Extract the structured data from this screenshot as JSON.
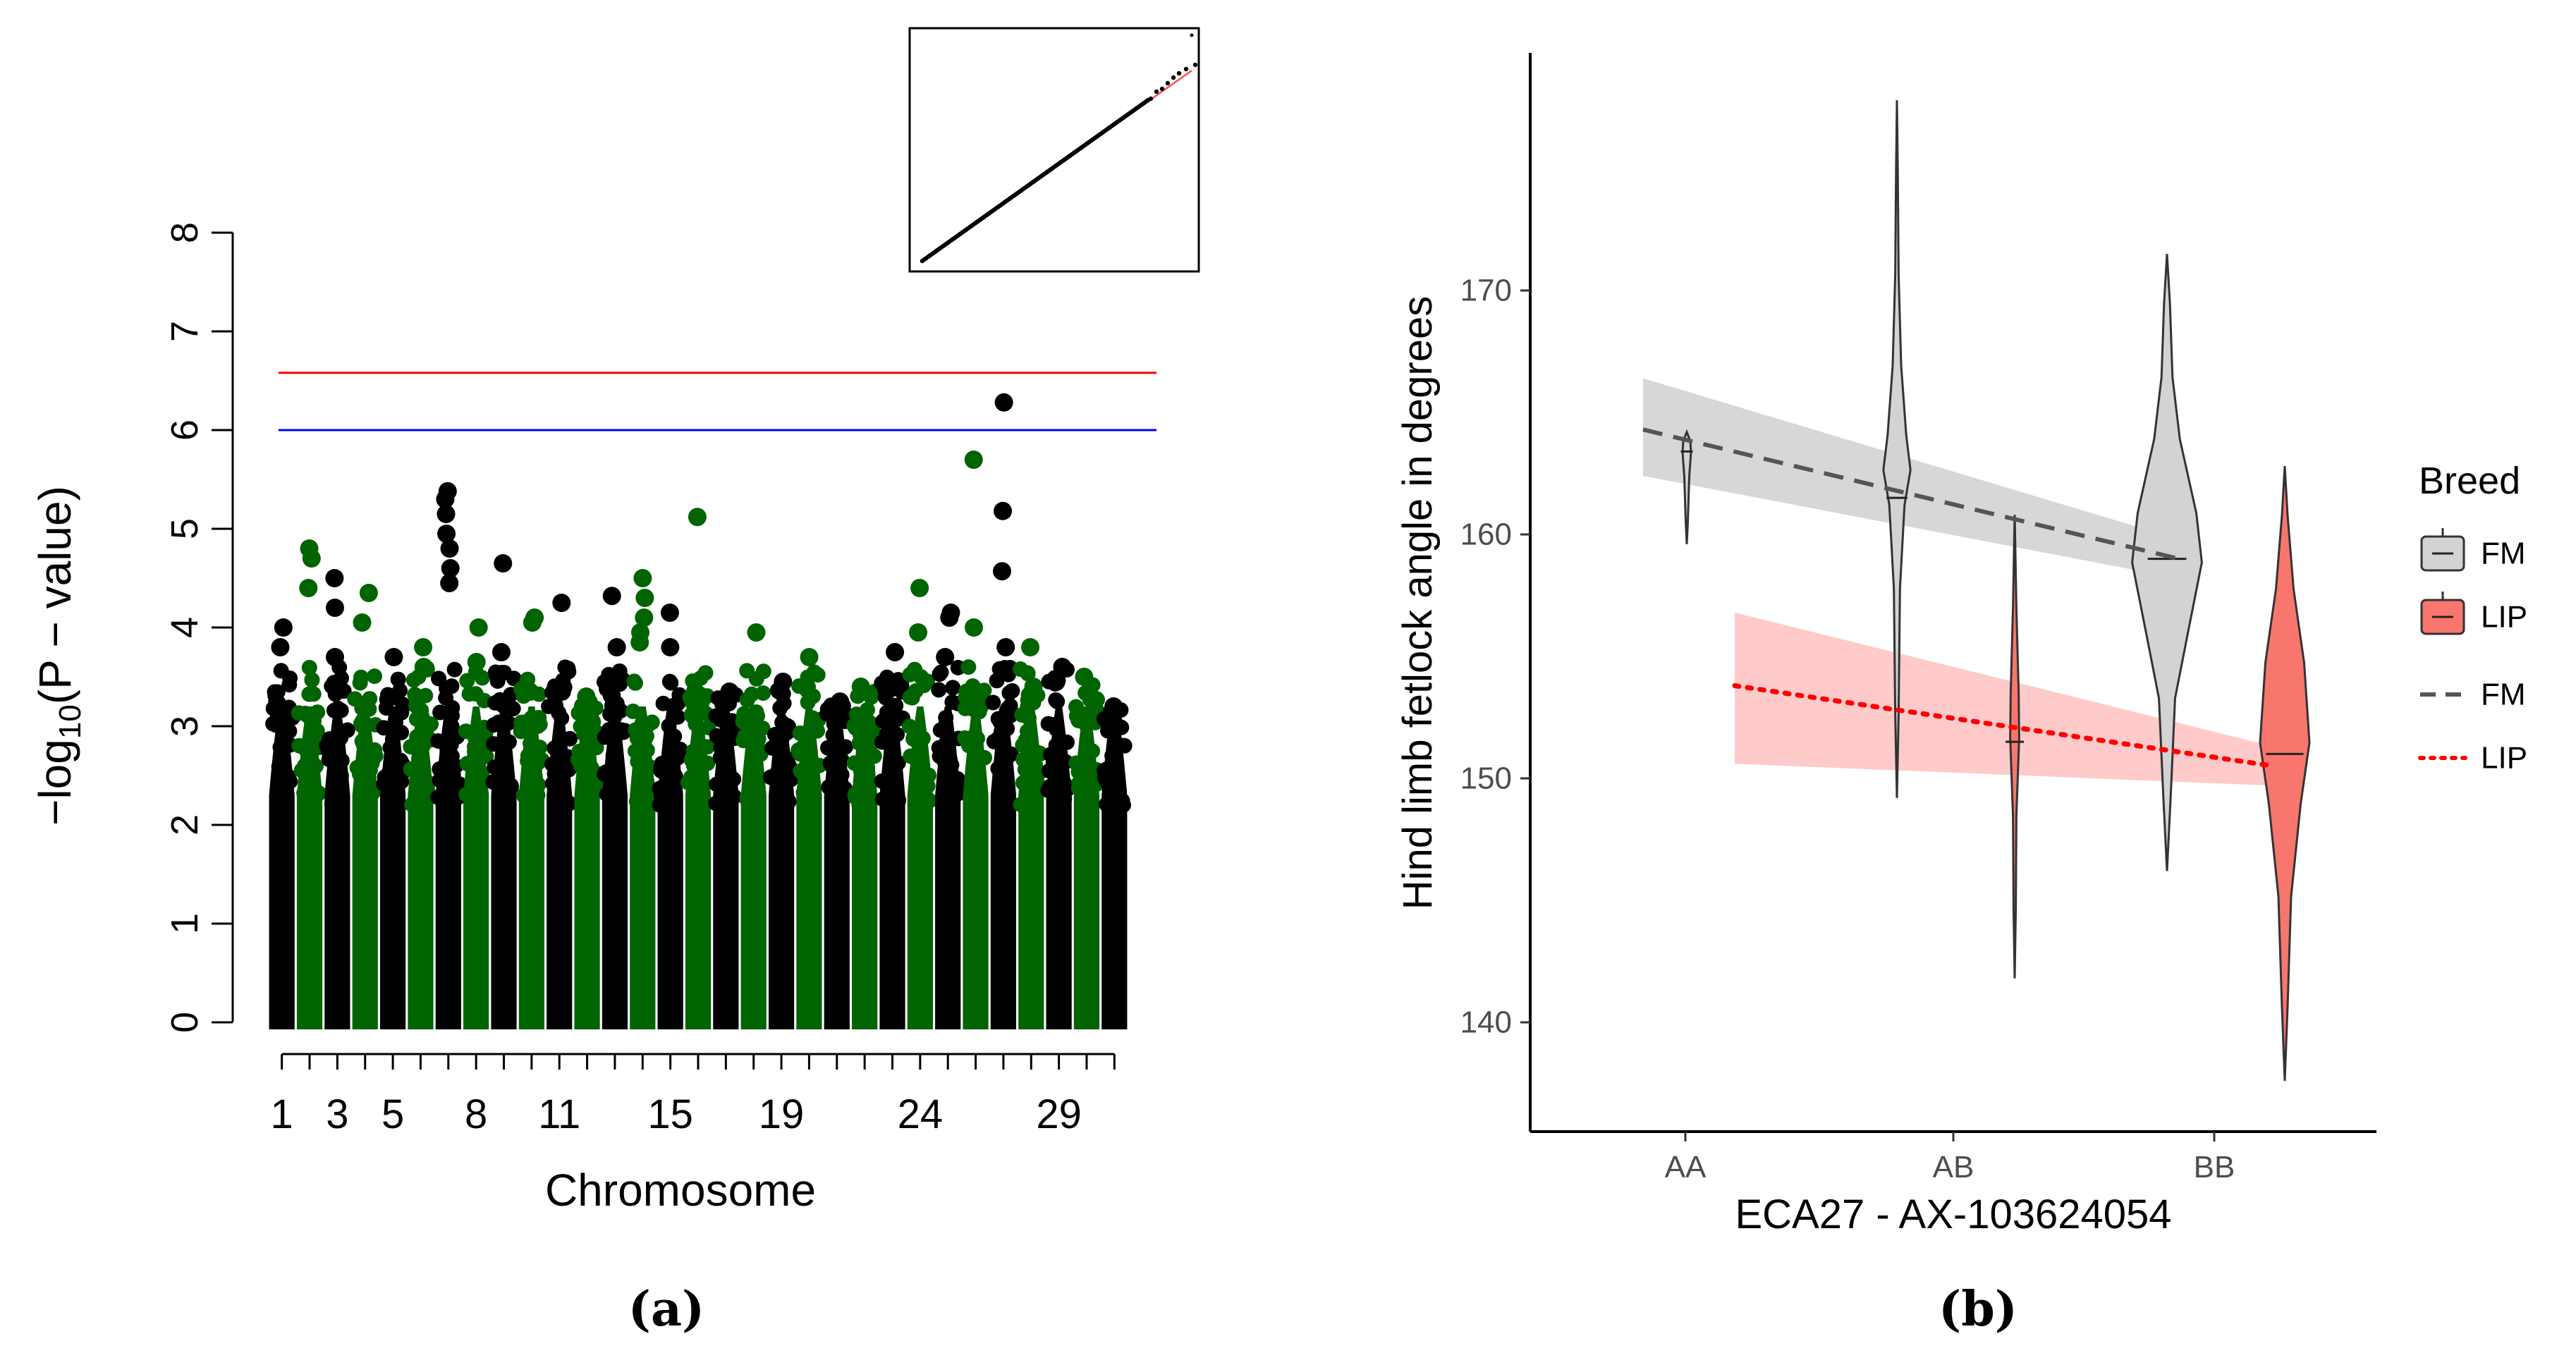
{
  "chart_data": [
    {
      "panel": "(a)",
      "type": "scatter",
      "subtype": "manhattan",
      "xlabel": "Chromosome",
      "ylabel_prefix": "−log",
      "ylabel_sub": "10",
      "ylabel_suffix": "(P − value)",
      "ylim": [
        0,
        8
      ],
      "yticks": [
        0,
        1,
        2,
        3,
        4,
        5,
        6,
        7,
        8
      ],
      "xticklabels": [
        "1",
        "3",
        "5",
        "8",
        "11",
        "15",
        "19",
        "24",
        "29"
      ],
      "chromosome_count": 31,
      "colors": [
        "#000000",
        "#006400"
      ],
      "thresholds": [
        {
          "name": "genome-wide",
          "value": 6.58,
          "color": "#ff0000"
        },
        {
          "name": "suggestive",
          "value": 6.0,
          "color": "#0000ff"
        }
      ],
      "chromosome_top_values": [
        4.0,
        4.8,
        4.5,
        4.35,
        3.7,
        3.8,
        5.38,
        4.0,
        4.65,
        4.1,
        4.25,
        3.3,
        4.32,
        4.5,
        4.15,
        5.12,
        3.35,
        3.95,
        3.45,
        3.7,
        3.25,
        3.4,
        3.75,
        4.4,
        4.15,
        5.7,
        6.28,
        3.8,
        3.6,
        3.5,
        3.2
      ],
      "chromosome_extra_hits": [
        [
          3.8
        ],
        [
          4.7,
          4.4
        ],
        [
          4.2,
          3.7
        ],
        [
          4.05
        ],
        [],
        [
          3.6
        ],
        [
          5.3,
          5.15,
          4.95,
          4.8,
          4.6,
          4.45
        ],
        [
          3.65
        ],
        [
          3.75
        ],
        [
          4.05,
          3.35
        ],
        [
          3.35
        ],
        [],
        [
          3.8
        ],
        [
          4.3,
          4.1,
          3.95,
          3.85
        ],
        [
          3.8
        ],
        [
          3.35,
          3.2
        ],
        [],
        [],
        [],
        [],
        [],
        [],
        [],
        [
          3.95
        ],
        [
          4.1,
          3.7
        ],
        [
          4.0
        ],
        [
          5.18,
          4.57,
          3.8
        ],
        [
          3.4
        ],
        [
          3.45
        ],
        [],
        []
      ],
      "inset": {
        "type": "qq-plot",
        "description_points": "observed vs expected"
      }
    },
    {
      "panel": "(b)",
      "type": "violin",
      "xlabel": "ECA27 - AX-103624054",
      "ylabel": "Hind limb fetlock angle in degrees",
      "categories": [
        "AA",
        "AB",
        "BB"
      ],
      "yticks": [
        140,
        150,
        160,
        170
      ],
      "ylim": [
        136,
        180
      ],
      "legend": {
        "title": "Breed",
        "fill_entries": [
          "FM",
          "LIP"
        ],
        "line_entries": [
          "FM",
          "LIP"
        ],
        "position": "right"
      },
      "series": [
        {
          "name": "FM",
          "fill": "#d3d3d3",
          "line_color": "#555555",
          "line_style": "dashed",
          "violins": [
            {
              "category": "AA",
              "min": 159.6,
              "max": 164.2,
              "median": 163.4
            },
            {
              "category": "AB",
              "min": 149.2,
              "max": 177.8,
              "median": 161.5
            },
            {
              "category": "BB",
              "min": 146.2,
              "max": 171.5,
              "median": 159.0
            }
          ],
          "trend": {
            "start": 164.3,
            "end": 159.0
          },
          "ribbon": {
            "start_low": 162.4,
            "start_high": 166.4,
            "end_low": 158.2,
            "end_high": 159.8
          }
        },
        {
          "name": "LIP",
          "fill": "#f8766d",
          "line_color": "#ff0000",
          "line_style": "dotted",
          "violins": [
            {
              "category": "AB",
              "min": 141.8,
              "max": 160.8,
              "median": 151.5
            },
            {
              "category": "BB",
              "min": 137.6,
              "max": 162.8,
              "median": 151.0
            }
          ],
          "trend": {
            "start": 153.8,
            "end": 150.5
          },
          "ribbon": {
            "start_low": 150.6,
            "start_high": 156.8,
            "end_low": 149.7,
            "end_high": 151.3
          }
        }
      ]
    }
  ],
  "panel_labels": {
    "a": "(a)",
    "b": "(b)"
  }
}
